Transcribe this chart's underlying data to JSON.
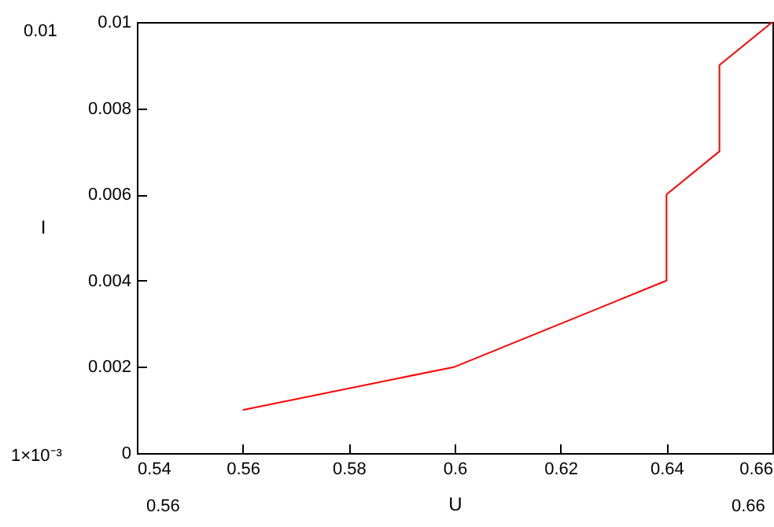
{
  "chart_data": {
    "type": "line",
    "xlabel": "U",
    "ylabel": "I",
    "x": [
      0.56,
      0.6,
      0.64,
      0.64,
      0.65,
      0.65,
      0.66
    ],
    "series": [
      {
        "color": "#ff0000",
        "values": [
          0.001,
          0.002,
          0.004,
          0.006,
          0.007,
          0.009,
          0.01
        ]
      }
    ],
    "xlim": [
      0.54,
      0.66
    ],
    "xticks": [
      0.54,
      0.56,
      0.58,
      0.6,
      0.62,
      0.64,
      0.66
    ],
    "ylim": [
      0,
      0.01
    ],
    "yticks": [
      0,
      0.002,
      0.004,
      0.006,
      0.008,
      0.01
    ],
    "grid": false,
    "marker": "none",
    "line_style": "solid",
    "annotations": [
      "0.01",
      "1×10⁻³",
      "0.56",
      "0.66"
    ]
  }
}
